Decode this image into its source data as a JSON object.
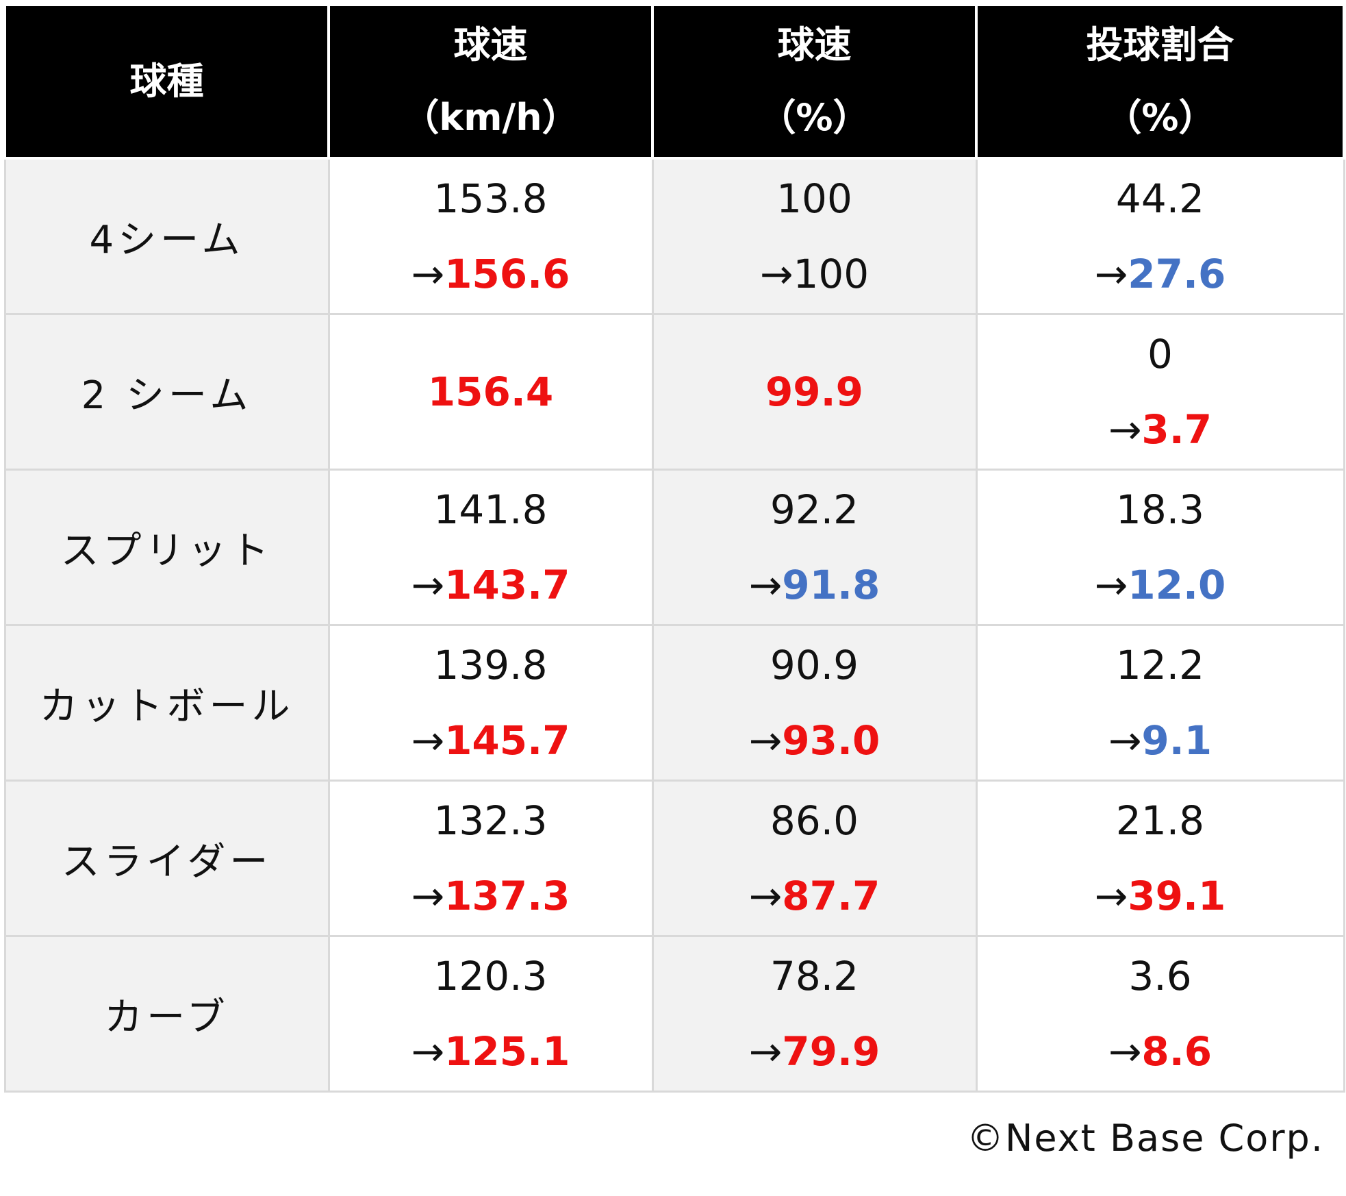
{
  "header": {
    "pitch_type": "球種",
    "velocity_kmh": [
      "球速",
      "（km/h）"
    ],
    "velocity_pct": [
      "球速",
      "（%）"
    ],
    "pitch_ratio": [
      "投球割合",
      "（%）"
    ]
  },
  "arrow": "→",
  "colors": {
    "increase": "#ee1111",
    "decrease": "#4472c4",
    "header_bg": "#000000",
    "alt_bg": "#f2f2f2"
  },
  "rows": [
    {
      "pitch": "4シーム",
      "kmh": {
        "before": "153.8",
        "after": "156.6",
        "trend": "red"
      },
      "pct": {
        "before": "100",
        "after": "100",
        "trend": "none"
      },
      "ratio": {
        "before": "44.2",
        "after": "27.6",
        "trend": "blue"
      }
    },
    {
      "pitch": "2 シーム",
      "kmh": {
        "single": "156.4"
      },
      "pct": {
        "single": "99.9"
      },
      "ratio": {
        "before": "0",
        "after": "3.7",
        "trend": "red"
      }
    },
    {
      "pitch": "スプリット",
      "kmh": {
        "before": "141.8",
        "after": "143.7",
        "trend": "red"
      },
      "pct": {
        "before": "92.2",
        "after": "91.8",
        "trend": "blue"
      },
      "ratio": {
        "before": "18.3",
        "after": "12.0",
        "trend": "blue"
      }
    },
    {
      "pitch": "カットボール",
      "kmh": {
        "before": "139.8",
        "after": "145.7",
        "trend": "red"
      },
      "pct": {
        "before": "90.9",
        "after": "93.0",
        "trend": "red"
      },
      "ratio": {
        "before": "12.2",
        "after": "9.1",
        "trend": "blue"
      }
    },
    {
      "pitch": "スライダー",
      "kmh": {
        "before": "132.3",
        "after": "137.3",
        "trend": "red"
      },
      "pct": {
        "before": "86.0",
        "after": "87.7",
        "trend": "red"
      },
      "ratio": {
        "before": "21.8",
        "after": "39.1",
        "trend": "red"
      }
    },
    {
      "pitch": "カーブ",
      "kmh": {
        "before": "120.3",
        "after": "125.1",
        "trend": "red"
      },
      "pct": {
        "before": "78.2",
        "after": "79.9",
        "trend": "red"
      },
      "ratio": {
        "before": "3.6",
        "after": "8.6",
        "trend": "red"
      }
    }
  ],
  "copyright": "©Next Base Corp."
}
